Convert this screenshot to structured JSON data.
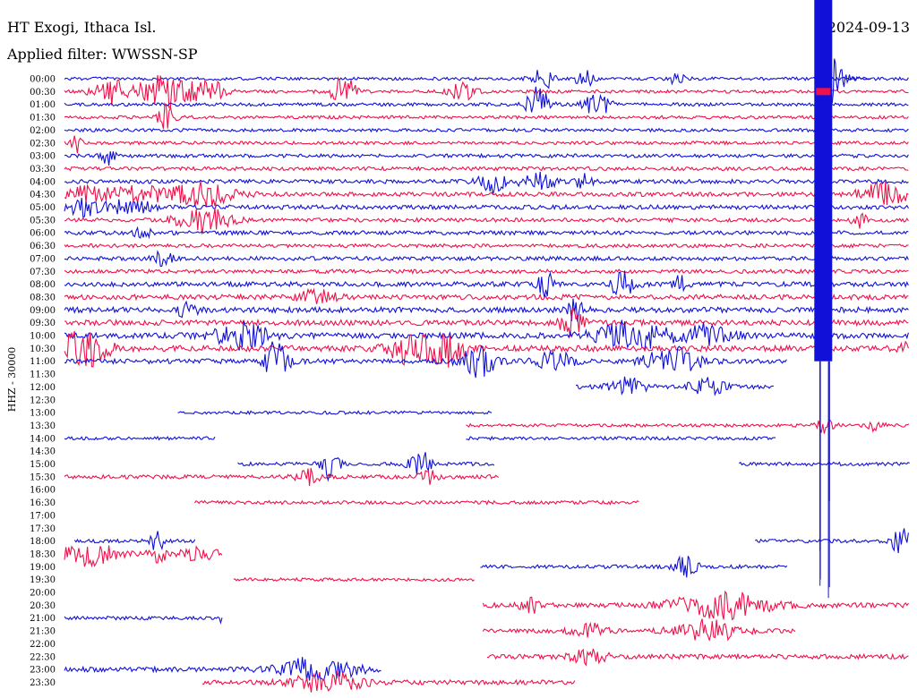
{
  "header": {
    "station": "HT Exogi, Ithaca Isl.",
    "date": "2024-09-13",
    "filter": "Applied filter: WWSSN-SP"
  },
  "axis": {
    "ylabel": "HHZ - 30000"
  },
  "colors": {
    "blue": "#1010d8",
    "red": "#f0104a",
    "text": "#000000"
  },
  "chart_data": {
    "type": "line",
    "title": "HT Exogi, Ithaca Isl.",
    "subtitle": "Applied filter: WWSSN-SP",
    "ylabel": "HHZ - 30000",
    "row_interval_minutes": 30,
    "color_cycle": [
      "blue",
      "red"
    ],
    "traces": [
      {
        "time": "00:00",
        "color": "blue",
        "segments": [
          [
            0.0,
            1.0
          ]
        ],
        "base_amp": 1.8
      },
      {
        "time": "00:30",
        "color": "red",
        "segments": [
          [
            0.0,
            1.0
          ]
        ],
        "base_amp": 1.8
      },
      {
        "time": "01:00",
        "color": "blue",
        "segments": [
          [
            0.0,
            1.0
          ]
        ],
        "base_amp": 1.8
      },
      {
        "time": "01:30",
        "color": "red",
        "segments": [
          [
            0.0,
            1.0
          ]
        ],
        "base_amp": 1.8
      },
      {
        "time": "02:00",
        "color": "blue",
        "segments": [
          [
            0.0,
            1.0
          ]
        ],
        "base_amp": 1.8
      },
      {
        "time": "02:30",
        "color": "red",
        "segments": [
          [
            0.0,
            1.0
          ]
        ],
        "base_amp": 1.8
      },
      {
        "time": "03:00",
        "color": "blue",
        "segments": [
          [
            0.0,
            1.0
          ]
        ],
        "base_amp": 2.0
      },
      {
        "time": "03:30",
        "color": "red",
        "segments": [
          [
            0.0,
            1.0
          ]
        ],
        "base_amp": 2.0
      },
      {
        "time": "04:00",
        "color": "blue",
        "segments": [
          [
            0.0,
            1.0
          ]
        ],
        "base_amp": 2.2
      },
      {
        "time": "04:30",
        "color": "red",
        "segments": [
          [
            0.0,
            1.0
          ]
        ],
        "base_amp": 2.4
      },
      {
        "time": "05:00",
        "color": "blue",
        "segments": [
          [
            0.0,
            1.0
          ]
        ],
        "base_amp": 2.4
      },
      {
        "time": "05:30",
        "color": "red",
        "segments": [
          [
            0.0,
            1.0
          ]
        ],
        "base_amp": 2.2
      },
      {
        "time": "06:00",
        "color": "blue",
        "segments": [
          [
            0.0,
            1.0
          ]
        ],
        "base_amp": 2.2
      },
      {
        "time": "06:30",
        "color": "red",
        "segments": [
          [
            0.0,
            1.0
          ]
        ],
        "base_amp": 2.0
      },
      {
        "time": "07:00",
        "color": "blue",
        "segments": [
          [
            0.0,
            1.0
          ]
        ],
        "base_amp": 2.2
      },
      {
        "time": "07:30",
        "color": "red",
        "segments": [
          [
            0.0,
            1.0
          ]
        ],
        "base_amp": 2.2
      },
      {
        "time": "08:00",
        "color": "blue",
        "segments": [
          [
            0.0,
            1.0
          ]
        ],
        "base_amp": 2.6
      },
      {
        "time": "08:30",
        "color": "red",
        "segments": [
          [
            0.0,
            1.0
          ]
        ],
        "base_amp": 2.8
      },
      {
        "time": "09:00",
        "color": "blue",
        "segments": [
          [
            0.0,
            1.0
          ]
        ],
        "base_amp": 3.0
      },
      {
        "time": "09:30",
        "color": "red",
        "segments": [
          [
            0.0,
            1.0
          ]
        ],
        "base_amp": 3.0
      },
      {
        "time": "10:00",
        "color": "blue",
        "segments": [
          [
            0.0,
            1.0
          ]
        ],
        "base_amp": 3.2
      },
      {
        "time": "10:30",
        "color": "red",
        "segments": [
          [
            0.0,
            1.0
          ]
        ],
        "base_amp": 3.2
      },
      {
        "time": "11:00",
        "color": "blue",
        "segments": [
          [
            0.0,
            0.855
          ]
        ],
        "base_amp": 2.6
      },
      {
        "time": "11:30",
        "color": "red",
        "segments": [],
        "base_amp": 0
      },
      {
        "time": "12:00",
        "color": "blue",
        "segments": [
          [
            0.605,
            0.84
          ]
        ],
        "base_amp": 2.4
      },
      {
        "time": "12:30",
        "color": "red",
        "segments": [],
        "base_amp": 0
      },
      {
        "time": "13:00",
        "color": "blue",
        "segments": [
          [
            0.134,
            0.506
          ]
        ],
        "base_amp": 1.8
      },
      {
        "time": "13:30",
        "color": "red",
        "segments": [
          [
            0.475,
            1.0
          ]
        ],
        "base_amp": 1.8
      },
      {
        "time": "14:00",
        "color": "blue",
        "segments": [
          [
            0.0,
            0.178
          ],
          [
            0.475,
            0.842
          ]
        ],
        "base_amp": 1.8
      },
      {
        "time": "14:30",
        "color": "red",
        "segments": [],
        "base_amp": 0
      },
      {
        "time": "15:00",
        "color": "blue",
        "segments": [
          [
            0.205,
            0.51
          ],
          [
            0.798,
            1.0
          ]
        ],
        "base_amp": 2.0
      },
      {
        "time": "15:30",
        "color": "red",
        "segments": [
          [
            0.0,
            0.514
          ]
        ],
        "base_amp": 2.2
      },
      {
        "time": "16:00",
        "color": "blue",
        "segments": [],
        "base_amp": 0
      },
      {
        "time": "16:30",
        "color": "red",
        "segments": [
          [
            0.154,
            0.68
          ]
        ],
        "base_amp": 2.0
      },
      {
        "time": "17:00",
        "color": "blue",
        "segments": [],
        "base_amp": 0
      },
      {
        "time": "17:30",
        "color": "red",
        "segments": [],
        "base_amp": 0
      },
      {
        "time": "18:00",
        "color": "blue",
        "segments": [
          [
            0.012,
            0.155
          ],
          [
            0.817,
            1.0
          ]
        ],
        "base_amp": 2.0
      },
      {
        "time": "18:30",
        "color": "red",
        "segments": [
          [
            0.0,
            0.188
          ]
        ],
        "base_amp": 2.6
      },
      {
        "time": "19:00",
        "color": "blue",
        "segments": [
          [
            0.492,
            0.855
          ]
        ],
        "base_amp": 2.0
      },
      {
        "time": "19:30",
        "color": "red",
        "segments": [
          [
            0.2,
            0.485
          ]
        ],
        "base_amp": 1.8
      },
      {
        "time": "20:00",
        "color": "blue",
        "segments": [],
        "base_amp": 0
      },
      {
        "time": "20:30",
        "color": "red",
        "segments": [
          [
            0.495,
            1.0
          ]
        ],
        "base_amp": 2.6
      },
      {
        "time": "21:00",
        "color": "blue",
        "segments": [
          [
            0.0,
            0.188
          ]
        ],
        "base_amp": 2.0
      },
      {
        "time": "21:30",
        "color": "red",
        "segments": [
          [
            0.495,
            0.865
          ]
        ],
        "base_amp": 2.2
      },
      {
        "time": "22:00",
        "color": "blue",
        "segments": [],
        "base_amp": 0
      },
      {
        "time": "22:30",
        "color": "red",
        "segments": [
          [
            0.5,
            1.0
          ]
        ],
        "base_amp": 2.6
      },
      {
        "time": "23:00",
        "color": "blue",
        "segments": [
          [
            0.0,
            0.375
          ]
        ],
        "base_amp": 2.8
      },
      {
        "time": "23:30",
        "color": "red",
        "segments": [
          [
            0.163,
            0.605
          ]
        ],
        "base_amp": 2.6
      }
    ],
    "bursts": [
      {
        "trace": "00:00",
        "at": 0.565,
        "width": 0.012,
        "amp": 14
      },
      {
        "trace": "00:00",
        "at": 0.615,
        "width": 0.01,
        "amp": 10
      },
      {
        "trace": "00:00",
        "at": 0.725,
        "width": 0.008,
        "amp": 8
      },
      {
        "trace": "00:30",
        "at": 0.055,
        "width": 0.02,
        "amp": 14
      },
      {
        "trace": "00:30",
        "at": 0.1,
        "width": 0.015,
        "amp": 18
      },
      {
        "trace": "00:30",
        "at": 0.13,
        "width": 0.02,
        "amp": 16
      },
      {
        "trace": "00:30",
        "at": 0.17,
        "width": 0.018,
        "amp": 14
      },
      {
        "trace": "00:30",
        "at": 0.33,
        "width": 0.012,
        "amp": 22
      },
      {
        "trace": "00:30",
        "at": 0.47,
        "width": 0.015,
        "amp": 10
      },
      {
        "trace": "01:00",
        "at": 0.56,
        "width": 0.012,
        "amp": 22
      },
      {
        "trace": "01:00",
        "at": 0.63,
        "width": 0.015,
        "amp": 14
      },
      {
        "trace": "01:30",
        "at": 0.12,
        "width": 0.01,
        "amp": 14
      },
      {
        "trace": "02:30",
        "at": 0.015,
        "width": 0.006,
        "amp": 10
      },
      {
        "trace": "03:00",
        "at": 0.052,
        "width": 0.008,
        "amp": 9
      },
      {
        "trace": "04:00",
        "at": 0.505,
        "width": 0.015,
        "amp": 14
      },
      {
        "trace": "04:00",
        "at": 0.56,
        "width": 0.02,
        "amp": 10
      },
      {
        "trace": "04:00",
        "at": 0.615,
        "width": 0.01,
        "amp": 9
      },
      {
        "trace": "04:30",
        "at": 0.02,
        "width": 0.03,
        "amp": 9
      },
      {
        "trace": "04:30",
        "at": 0.09,
        "width": 0.04,
        "amp": 8
      },
      {
        "trace": "04:30",
        "at": 0.165,
        "width": 0.035,
        "amp": 12
      },
      {
        "trace": "04:30",
        "at": 0.97,
        "width": 0.03,
        "amp": 12
      },
      {
        "trace": "05:00",
        "at": 0.02,
        "width": 0.03,
        "amp": 9
      },
      {
        "trace": "05:00",
        "at": 0.08,
        "width": 0.025,
        "amp": 8
      },
      {
        "trace": "05:30",
        "at": 0.165,
        "width": 0.03,
        "amp": 14
      },
      {
        "trace": "05:30",
        "at": 0.94,
        "width": 0.008,
        "amp": 8
      },
      {
        "trace": "06:00",
        "at": 0.09,
        "width": 0.01,
        "amp": 9
      },
      {
        "trace": "07:00",
        "at": 0.115,
        "width": 0.012,
        "amp": 8
      },
      {
        "trace": "08:00",
        "at": 0.57,
        "width": 0.01,
        "amp": 14
      },
      {
        "trace": "08:00",
        "at": 0.66,
        "width": 0.015,
        "amp": 14
      },
      {
        "trace": "08:00",
        "at": 0.73,
        "width": 0.01,
        "amp": 10
      },
      {
        "trace": "08:30",
        "at": 0.3,
        "width": 0.02,
        "amp": 8
      },
      {
        "trace": "09:00",
        "at": 0.145,
        "width": 0.012,
        "amp": 8
      },
      {
        "trace": "09:00",
        "at": 0.605,
        "width": 0.01,
        "amp": 14
      },
      {
        "trace": "09:30",
        "at": 0.6,
        "width": 0.012,
        "amp": 18
      },
      {
        "trace": "10:00",
        "at": 0.21,
        "width": 0.03,
        "amp": 14
      },
      {
        "trace": "10:00",
        "at": 0.67,
        "width": 0.04,
        "amp": 16
      },
      {
        "trace": "10:00",
        "at": 0.76,
        "width": 0.03,
        "amp": 12
      },
      {
        "trace": "10:30",
        "at": 0.02,
        "width": 0.03,
        "amp": 22
      },
      {
        "trace": "10:30",
        "at": 0.41,
        "width": 0.025,
        "amp": 18
      },
      {
        "trace": "10:30",
        "at": 0.455,
        "width": 0.02,
        "amp": 18
      },
      {
        "trace": "10:30",
        "at": 0.995,
        "width": 0.01,
        "amp": 8
      },
      {
        "trace": "11:00",
        "at": 0.25,
        "width": 0.015,
        "amp": 22
      },
      {
        "trace": "11:00",
        "at": 0.49,
        "width": 0.02,
        "amp": 18
      },
      {
        "trace": "11:00",
        "at": 0.58,
        "width": 0.02,
        "amp": 12
      },
      {
        "trace": "11:00",
        "at": 0.72,
        "width": 0.03,
        "amp": 16
      },
      {
        "trace": "12:00",
        "at": 0.665,
        "width": 0.02,
        "amp": 10
      },
      {
        "trace": "12:00",
        "at": 0.76,
        "width": 0.02,
        "amp": 10
      },
      {
        "trace": "13:30",
        "at": 0.9,
        "width": 0.01,
        "amp": 8
      },
      {
        "trace": "13:30",
        "at": 0.96,
        "width": 0.008,
        "amp": 8
      },
      {
        "trace": "15:00",
        "at": 0.315,
        "width": 0.01,
        "amp": 18
      },
      {
        "trace": "15:00",
        "at": 0.42,
        "width": 0.012,
        "amp": 16
      },
      {
        "trace": "15:30",
        "at": 0.29,
        "width": 0.015,
        "amp": 8
      },
      {
        "trace": "15:30",
        "at": 0.43,
        "width": 0.01,
        "amp": 8
      },
      {
        "trace": "18:00",
        "at": 0.11,
        "width": 0.008,
        "amp": 12
      },
      {
        "trace": "18:00",
        "at": 0.99,
        "width": 0.012,
        "amp": 14
      },
      {
        "trace": "18:30",
        "at": 0.03,
        "width": 0.03,
        "amp": 14
      },
      {
        "trace": "18:30",
        "at": 0.11,
        "width": 0.01,
        "amp": 10
      },
      {
        "trace": "18:30",
        "at": 0.16,
        "width": 0.02,
        "amp": 8
      },
      {
        "trace": "19:00",
        "at": 0.735,
        "width": 0.015,
        "amp": 12
      },
      {
        "trace": "20:30",
        "at": 0.55,
        "width": 0.01,
        "amp": 10
      },
      {
        "trace": "20:30",
        "at": 0.78,
        "width": 0.06,
        "amp": 14
      },
      {
        "trace": "21:00",
        "at": 0.19,
        "width": 0.005,
        "amp": 22
      },
      {
        "trace": "21:30",
        "at": 0.62,
        "width": 0.02,
        "amp": 8
      },
      {
        "trace": "21:30",
        "at": 0.76,
        "width": 0.04,
        "amp": 12
      },
      {
        "trace": "22:30",
        "at": 0.62,
        "width": 0.02,
        "amp": 8
      },
      {
        "trace": "23:00",
        "at": 0.3,
        "width": 0.04,
        "amp": 14
      },
      {
        "trace": "23:30",
        "at": 0.31,
        "width": 0.04,
        "amp": 12
      }
    ],
    "event": {
      "trace": "00:00",
      "onset": 0.887,
      "coda_to": 0.955,
      "amp": 30,
      "spike_traces": [
        "00:00",
        "11:00"
      ]
    }
  }
}
